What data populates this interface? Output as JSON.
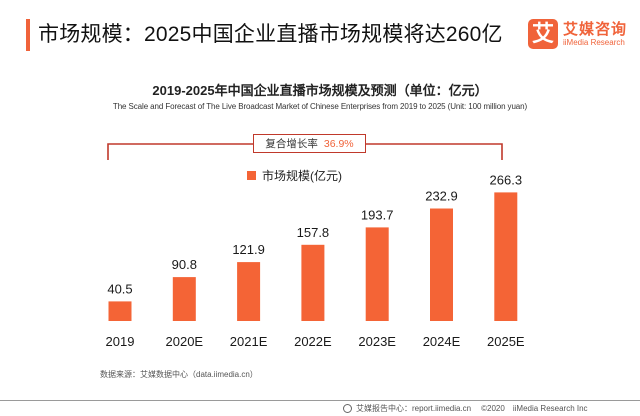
{
  "header": {
    "title": "市场规模：2025中国企业直播市场规模将达260亿",
    "accent_color": "#f0633a"
  },
  "logo": {
    "mark": "艾",
    "name_cn": "艾媒咨询",
    "name_en": "iiMedia Research"
  },
  "cagr": {
    "label": "复合增长率",
    "value": "36.9%"
  },
  "chart_data": {
    "type": "bar",
    "title": "2019-2025年中国企业直播市场规模及预测（单位：亿元）",
    "subtitle": "The Scale and Forecast of The Live Broadcast Market of Chinese Enterprises from 2019 to 2025 (Unit: 100 million yuan)",
    "categories": [
      "2019",
      "2020E",
      "2021E",
      "2022E",
      "2023E",
      "2024E",
      "2025E"
    ],
    "series": [
      {
        "name": "市场规模(亿元)",
        "color": "#f46436",
        "values": [
          40.5,
          90.8,
          121.9,
          157.8,
          193.7,
          232.9,
          266.3
        ],
        "labels": [
          "40.5",
          "90.8",
          "121.9",
          "157.8",
          "193.7",
          "232.9",
          "266.3"
        ]
      }
    ],
    "xlabel": "",
    "ylabel": "",
    "ylim": [
      0,
      300
    ],
    "grid": false,
    "legend": "top-center",
    "annotations": [
      "复合增长率 36.9%"
    ]
  },
  "source": "数据来源：艾媒数据中心（data.iimedia.cn）",
  "footer": {
    "site": "艾媒报告中心：report.iimedia.cn",
    "copyright": "©2020",
    "company": "iiMedia Research Inc"
  }
}
